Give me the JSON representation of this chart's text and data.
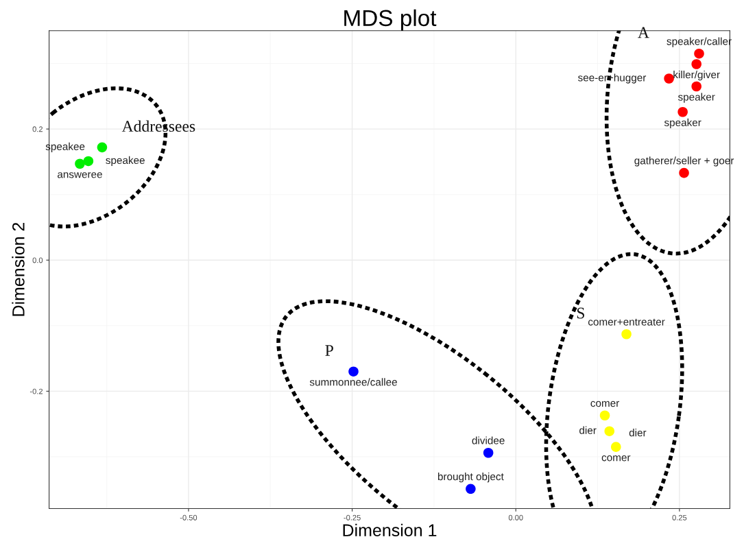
{
  "chart_data": {
    "type": "scatter",
    "title": "MDS plot",
    "xlabel": "Dimension 1",
    "ylabel": "Dimension 2",
    "xlim": [
      -0.713,
      0.327
    ],
    "ylim": [
      -0.379,
      0.35
    ],
    "xticks": [
      {
        "value": -0.5,
        "label": "-0.50"
      },
      {
        "value": -0.25,
        "label": "-0.25"
      },
      {
        "value": 0,
        "label": "0.00"
      },
      {
        "value": 0.25,
        "label": "0.25"
      }
    ],
    "yticks": [
      {
        "value": -0.2,
        "label": "-0.2"
      },
      {
        "value": 0,
        "label": "0.0"
      },
      {
        "value": 0.2,
        "label": "0.2"
      }
    ],
    "grid": true,
    "legend": false,
    "marker": "circle",
    "series": [
      {
        "name": "A",
        "color": "#ff0000",
        "x": [
          0.28,
          0.276,
          0.234,
          0.276,
          0.255,
          0.257
        ],
        "values": [
          0.315,
          0.299,
          0.277,
          0.265,
          0.226,
          0.133
        ]
      },
      {
        "name": "Addressees",
        "color": "#00ee00",
        "x": [
          -0.632,
          -0.653,
          -0.666
        ],
        "values": [
          0.172,
          0.151,
          0.147
        ]
      },
      {
        "name": "P",
        "color": "#0000ff",
        "x": [
          -0.248,
          -0.042,
          -0.069
        ],
        "values": [
          -0.17,
          -0.294,
          -0.349
        ]
      },
      {
        "name": "S",
        "color": "#ffff00",
        "x": [
          0.169,
          0.136,
          0.143,
          0.153
        ],
        "values": [
          -0.113,
          -0.237,
          -0.261,
          -0.285
        ]
      }
    ],
    "annotations": [
      {
        "text": "speaker/caller",
        "x": 0.28,
        "y": 0.315
      },
      {
        "text": "killer/giver",
        "x": 0.276,
        "y": 0.299
      },
      {
        "text": "see-er+hugger",
        "x": 0.234,
        "y": 0.277
      },
      {
        "text": "speaker",
        "x": 0.276,
        "y": 0.265
      },
      {
        "text": "speaker",
        "x": 0.255,
        "y": 0.226
      },
      {
        "text": "gatherer/seller + goer",
        "x": 0.257,
        "y": 0.133
      },
      {
        "text": "speakee",
        "x": -0.632,
        "y": 0.172
      },
      {
        "text": "speakee",
        "x": -0.653,
        "y": 0.151
      },
      {
        "text": "answeree",
        "x": -0.666,
        "y": 0.147
      },
      {
        "text": "summonnee/callee",
        "x": -0.248,
        "y": -0.17
      },
      {
        "text": "dividee",
        "x": -0.042,
        "y": -0.294
      },
      {
        "text": "brought object",
        "x": -0.069,
        "y": -0.349
      },
      {
        "text": "comer+entreater",
        "x": 0.169,
        "y": -0.113
      },
      {
        "text": "comer",
        "x": 0.136,
        "y": -0.237
      },
      {
        "text": "dier",
        "x": 0.143,
        "y": -0.261
      },
      {
        "text": "comer",
        "x": 0.153,
        "y": -0.285
      },
      {
        "text": "dier",
        "x": 0.153,
        "y": -0.285
      }
    ]
  }
}
